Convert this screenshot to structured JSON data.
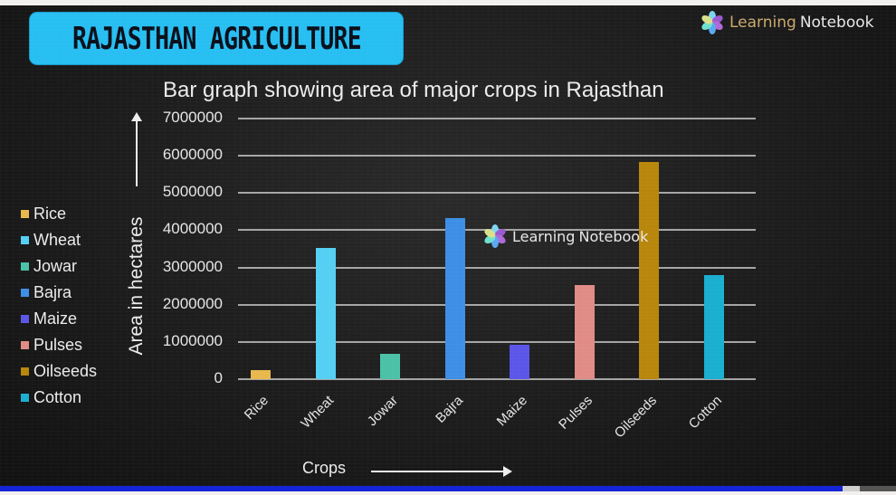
{
  "banner": {
    "title": "RAJASTHAN AGRICULTURE",
    "color": "#27bef2"
  },
  "brand_top": {
    "part1": "Learning",
    "part2": "Notebook"
  },
  "brand_watermark": {
    "part1": "Learning",
    "part2": "Notebook"
  },
  "video": {
    "progress_percent": 94,
    "buffered_percent": 100,
    "progress_color": "#1424d6"
  },
  "chart_data": {
    "type": "bar",
    "title": "Bar graph showing area of major crops in Rajasthan",
    "xlabel": "Crops",
    "ylabel": "Area in hectares",
    "ylim": [
      0,
      7000000
    ],
    "yticks": [
      "0",
      "1000000",
      "2000000",
      "3000000",
      "4000000",
      "5000000",
      "6000000",
      "7000000"
    ],
    "grid": true,
    "legend_position": "left",
    "categories": [
      "Rice",
      "Wheat",
      "Jowar",
      "Bajra",
      "Maize",
      "Pulses",
      "Oilseeds",
      "Cotton"
    ],
    "values": [
      220000,
      3500000,
      650000,
      4300000,
      900000,
      2500000,
      5800000,
      2770000
    ],
    "colors": [
      "#e8b84d",
      "#55cff3",
      "#4bc1a7",
      "#3d8ee6",
      "#5b55e8",
      "#e08b86",
      "#b8860b",
      "#1aaed0"
    ]
  }
}
